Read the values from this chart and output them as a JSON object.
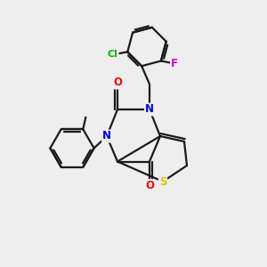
{
  "background_color": "#eeeeee",
  "bond_color": "#1a1a1a",
  "bond_lw": 1.6,
  "atom_colors": {
    "N": "#0000ee",
    "O": "#ff0000",
    "S": "#cccc00",
    "Cl": "#00bb00",
    "F": "#dd00dd",
    "C": "#1a1a1a"
  },
  "figsize": [
    3.0,
    3.0
  ],
  "dpi": 100,
  "xlim": [
    0,
    10
  ],
  "ylim": [
    0,
    10
  ]
}
